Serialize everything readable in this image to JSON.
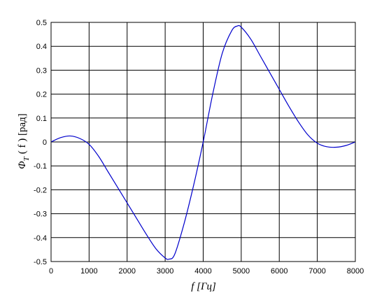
{
  "chart_data": {
    "type": "line",
    "xlabel": "f  [Гц]",
    "ylabel_main": "Φ",
    "ylabel_sub": "T",
    "ylabel_rest": "( f )   [рад]",
    "xlim": [
      0,
      8000
    ],
    "ylim": [
      -0.5,
      0.5
    ],
    "xticks": [
      0,
      1000,
      2000,
      3000,
      4000,
      5000,
      6000,
      7000,
      8000
    ],
    "yticks": [
      -0.5,
      -0.4,
      -0.3,
      -0.2,
      -0.1,
      0,
      0.1,
      0.2,
      0.3,
      0.4,
      0.5
    ],
    "ytick_labels": [
      "-0.5",
      "-0.4",
      "-0.3",
      "-0.2",
      "-0.1",
      "0",
      "0.1",
      "0.2",
      "0.3",
      "0.4",
      "0.5"
    ],
    "grid": true,
    "line_color": "#0000cc",
    "series": [
      {
        "x": [
          0,
          250,
          500,
          750,
          1000,
          1250,
          1500,
          1750,
          2000,
          2250,
          2500,
          2750,
          3000,
          3100,
          3250,
          3500,
          3750,
          4000,
          4250,
          4500,
          4750,
          4900,
          5000,
          5250,
          5500,
          5750,
          6000,
          6250,
          6500,
          6750,
          7000,
          7250,
          7500,
          7750,
          8000
        ],
        "values": [
          0,
          0.018,
          0.025,
          0.015,
          -0.01,
          -0.06,
          -0.125,
          -0.19,
          -0.255,
          -0.32,
          -0.385,
          -0.445,
          -0.485,
          -0.49,
          -0.47,
          -0.34,
          -0.18,
          0.0,
          0.2,
          0.37,
          0.465,
          0.485,
          0.48,
          0.43,
          0.36,
          0.29,
          0.22,
          0.15,
          0.085,
          0.03,
          -0.005,
          -0.02,
          -0.022,
          -0.015,
          0
        ]
      }
    ]
  }
}
